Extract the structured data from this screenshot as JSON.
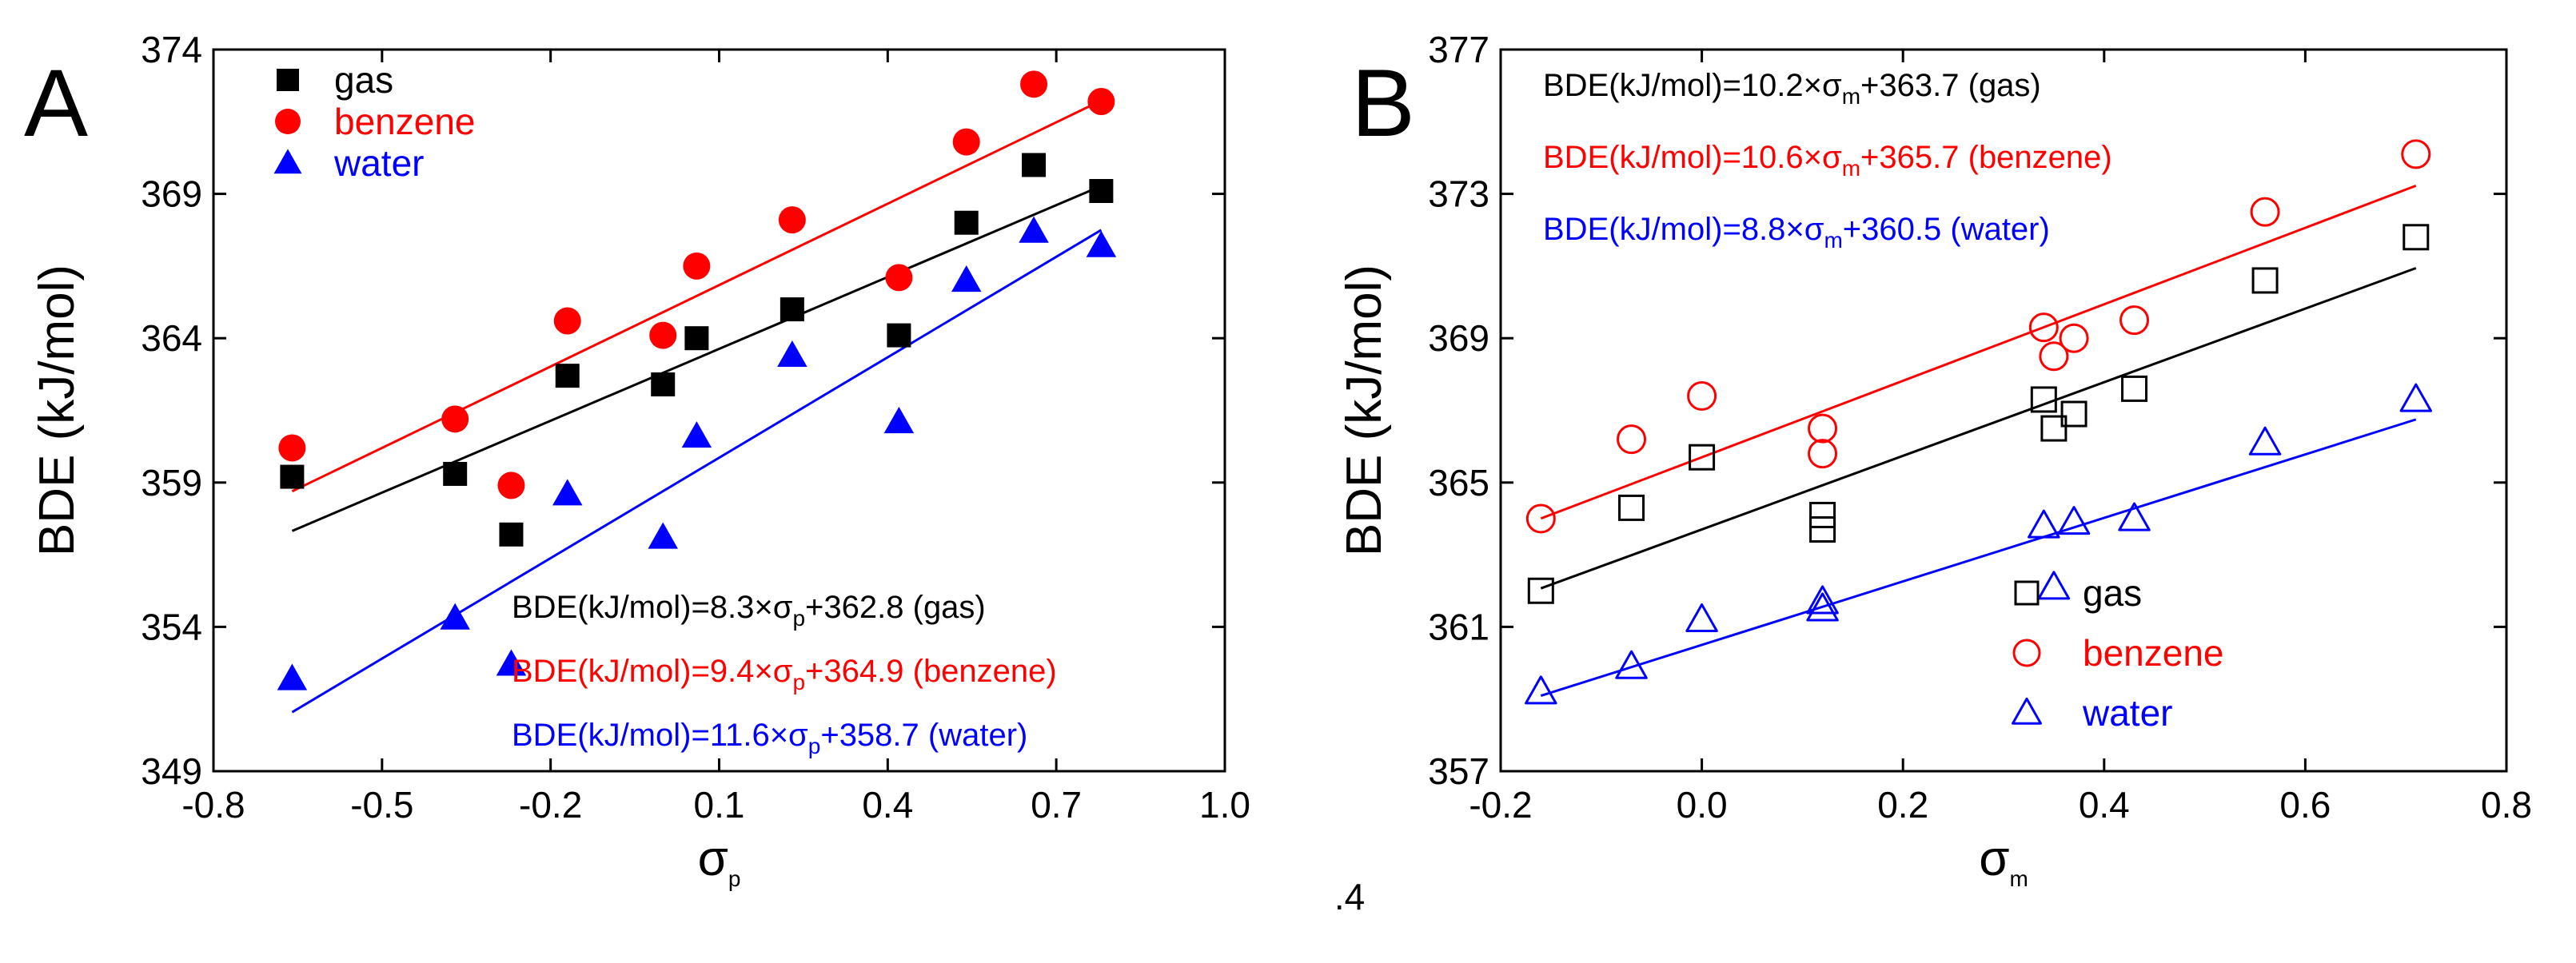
{
  "chart_data": [
    {
      "type": "scatter",
      "panel_label": "A",
      "xlabel": {
        "main": "σ",
        "sub": "p"
      },
      "ylabel": "BDE (kJ/mol)",
      "xlim": [
        -0.8,
        1.0
      ],
      "ylim": [
        349,
        374
      ],
      "xticks": [
        -0.8,
        -0.5,
        -0.2,
        0.1,
        0.4,
        0.7,
        1.0
      ],
      "xtick_labels": [
        "-0.8",
        "-0.5",
        "-0.2",
        "0.1",
        "0.4",
        "0.7",
        "1.0"
      ],
      "yticks": [
        349,
        354,
        359,
        364,
        369,
        374
      ],
      "ytick_labels": [
        "349",
        "354",
        "359",
        "364",
        "369",
        "374"
      ],
      "legend_position": "top-left",
      "series": [
        {
          "name": "gas",
          "marker": "square",
          "filled": true,
          "color": "#000000",
          "points": [
            [
              -0.66,
              359.2
            ],
            [
              -0.37,
              359.3
            ],
            [
              -0.27,
              357.2
            ],
            [
              -0.17,
              362.7
            ],
            [
              0.0,
              362.4
            ],
            [
              0.06,
              364.0
            ],
            [
              0.23,
              365.0
            ],
            [
              0.42,
              364.1
            ],
            [
              0.54,
              368.0
            ],
            [
              0.66,
              370.0
            ],
            [
              0.78,
              369.1
            ]
          ],
          "fit": {
            "slope": 8.3,
            "intercept": 362.8
          }
        },
        {
          "name": "benzene",
          "marker": "circle",
          "filled": true,
          "color": "#ff0000",
          "points": [
            [
              -0.66,
              360.2
            ],
            [
              -0.37,
              361.2
            ],
            [
              -0.27,
              358.9
            ],
            [
              -0.17,
              364.6
            ],
            [
              0.0,
              364.1
            ],
            [
              0.06,
              366.5
            ],
            [
              0.23,
              368.1
            ],
            [
              0.42,
              366.1
            ],
            [
              0.54,
              370.8
            ],
            [
              0.66,
              372.8
            ],
            [
              0.78,
              372.2
            ]
          ],
          "fit": {
            "slope": 9.4,
            "intercept": 364.9
          }
        },
        {
          "name": "water",
          "marker": "triangle",
          "filled": true,
          "color": "#0000ff",
          "points": [
            [
              -0.66,
              352.2
            ],
            [
              -0.37,
              354.3
            ],
            [
              -0.27,
              352.7
            ],
            [
              -0.17,
              358.6
            ],
            [
              0.0,
              357.1
            ],
            [
              0.06,
              360.6
            ],
            [
              0.23,
              363.4
            ],
            [
              0.42,
              361.1
            ],
            [
              0.54,
              366.0
            ],
            [
              0.66,
              367.7
            ],
            [
              0.78,
              367.2
            ]
          ],
          "fit": {
            "slope": 11.6,
            "intercept": 358.7
          }
        }
      ],
      "fit_x_range": [
        -0.66,
        0.78
      ],
      "equations": [
        {
          "text": "BDE(kJ/mol)=8.3×σ",
          "sub": "p",
          "tail": "+362.8 (gas)",
          "color": "#000000"
        },
        {
          "text": "BDE(kJ/mol)=9.4×σ",
          "sub": "p",
          "tail": "+364.9 (benzene)",
          "color": "#ff0000"
        },
        {
          "text": "BDE(kJ/mol)=11.6×σ",
          "sub": "p",
          "tail": "+358.7 (water)",
          "color": "#0000ff"
        }
      ]
    },
    {
      "type": "scatter",
      "panel_label": "B",
      "xlabel": {
        "main": "σ",
        "sub": "m"
      },
      "ylabel": "BDE (kJ/mol)",
      "xlim": [
        -0.2,
        0.8
      ],
      "ylim": [
        357,
        377
      ],
      "xticks": [
        -0.2,
        0.0,
        0.2,
        0.4,
        0.6,
        0.8
      ],
      "xtick_labels": [
        "-0.2",
        "0.0",
        "0.2",
        "0.4",
        "0.6",
        "0.8"
      ],
      "yticks": [
        357,
        361,
        365,
        369,
        373,
        377
      ],
      "ytick_labels": [
        "357",
        "361",
        "365",
        "369",
        "373",
        "377"
      ],
      "legend_position": "bottom-right",
      "series": [
        {
          "name": "gas",
          "marker": "square",
          "filled": false,
          "color": "#000000",
          "points": [
            [
              -0.16,
              362.0
            ],
            [
              -0.07,
              364.3
            ],
            [
              0.0,
              365.7
            ],
            [
              0.12,
              363.7
            ],
            [
              0.12,
              364.1
            ],
            [
              0.34,
              367.3
            ],
            [
              0.35,
              366.5
            ],
            [
              0.37,
              366.9
            ],
            [
              0.43,
              367.6
            ],
            [
              0.56,
              370.6
            ],
            [
              0.71,
              371.8
            ]
          ],
          "fit": {
            "slope": 10.2,
            "intercept": 363.7
          }
        },
        {
          "name": "benzene",
          "marker": "circle",
          "filled": false,
          "color": "#ff0000",
          "points": [
            [
              -0.16,
              364.0
            ],
            [
              -0.07,
              366.2
            ],
            [
              0.0,
              367.4
            ],
            [
              0.12,
              365.8
            ],
            [
              0.12,
              366.5
            ],
            [
              0.34,
              369.3
            ],
            [
              0.35,
              368.5
            ],
            [
              0.37,
              369.0
            ],
            [
              0.43,
              369.5
            ],
            [
              0.56,
              372.5
            ],
            [
              0.71,
              374.1
            ]
          ],
          "fit": {
            "slope": 10.6,
            "intercept": 365.7
          }
        },
        {
          "name": "water",
          "marker": "triangle",
          "filled": false,
          "color": "#0000ff",
          "points": [
            [
              -0.16,
              359.2
            ],
            [
              -0.07,
              359.9
            ],
            [
              0.0,
              361.2
            ],
            [
              0.12,
              361.5
            ],
            [
              0.12,
              361.7
            ],
            [
              0.34,
              363.8
            ],
            [
              0.35,
              362.1
            ],
            [
              0.37,
              363.9
            ],
            [
              0.43,
              364.0
            ],
            [
              0.56,
              366.1
            ],
            [
              0.71,
              367.3
            ]
          ],
          "fit": {
            "slope": 8.8,
            "intercept": 360.5
          }
        }
      ],
      "fit_x_range": [
        -0.16,
        0.71
      ],
      "equations": [
        {
          "text": "BDE(kJ/mol)=10.2×σ",
          "sub": "m",
          "tail": "+363.7 (gas)",
          "color": "#000000"
        },
        {
          "text": "BDE(kJ/mol)=10.6×σ",
          "sub": "m",
          "tail": "+365.7 (benzene)",
          "color": "#ff0000"
        },
        {
          "text": "BDE(kJ/mol)=8.8×σ",
          "sub": "m",
          "tail": "+360.5 (water)",
          "color": "#0000ff"
        }
      ]
    }
  ],
  "stray_label": ".4"
}
